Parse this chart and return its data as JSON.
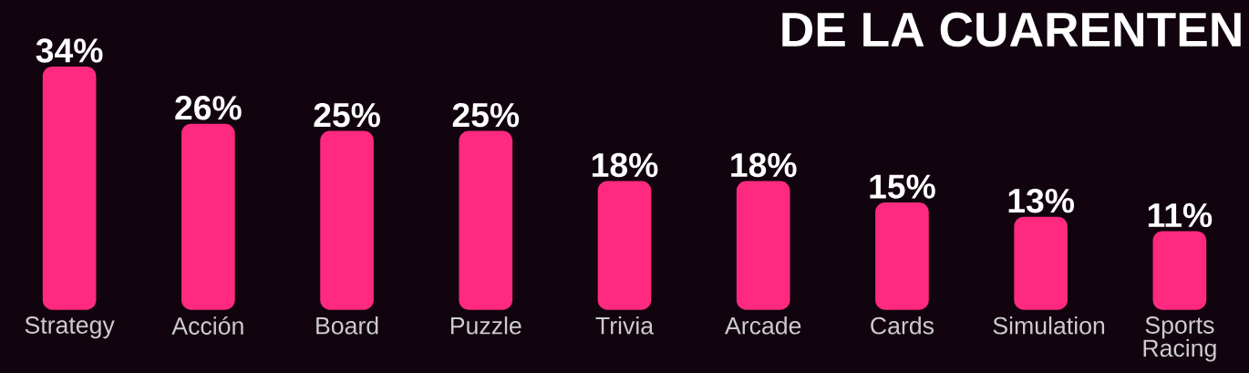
{
  "chart_data": {
    "type": "bar",
    "title": "DE LA CUARENTEN",
    "categories": [
      "Strategy",
      "Acción",
      "Board",
      "Puzzle",
      "Trivia",
      "Arcade",
      "Cards",
      "Simulation",
      "Sports Racing"
    ],
    "values": [
      34,
      26,
      25,
      25,
      18,
      18,
      15,
      13,
      11
    ],
    "value_labels": [
      "34%",
      "26%",
      "25%",
      "25%",
      "18%",
      "18%",
      "15%",
      "13%",
      "11%"
    ],
    "color": "#ff2a7f"
  }
}
